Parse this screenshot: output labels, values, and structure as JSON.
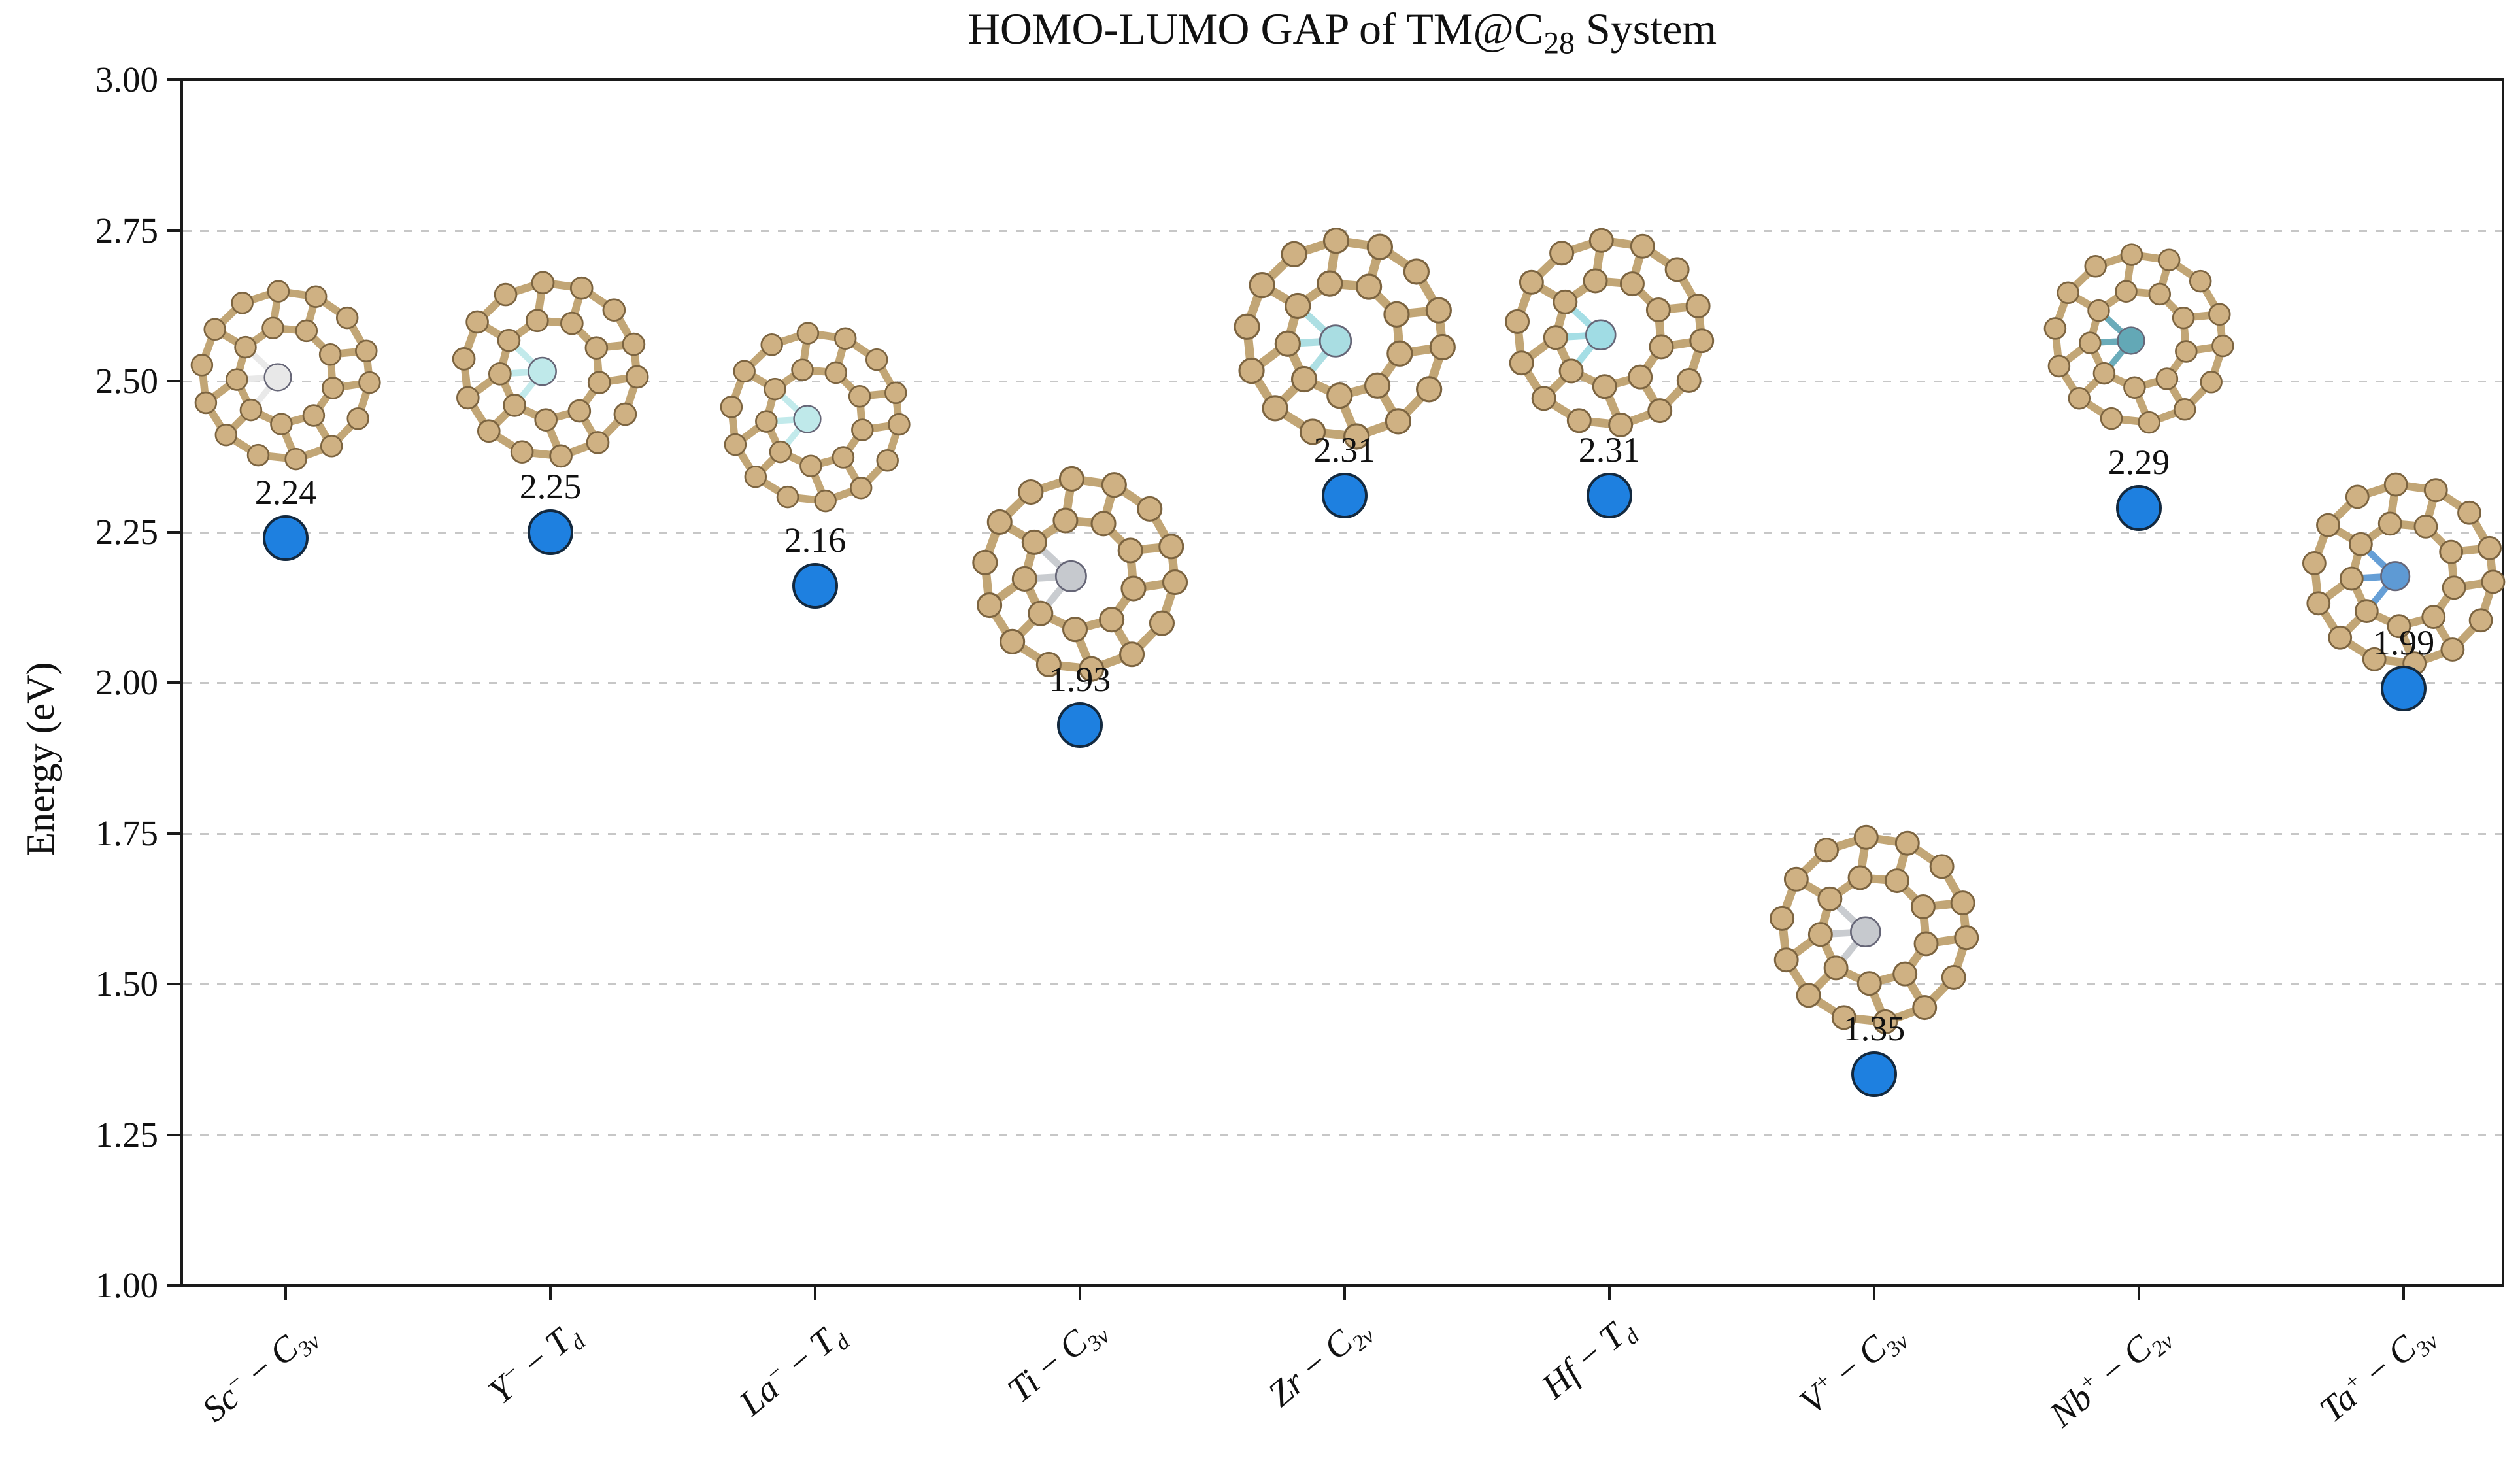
{
  "title": {
    "prefix": "HOMO-LUMO GAP of TM@C",
    "subscript": "28",
    "suffix": " System"
  },
  "axes": {
    "ylabel": "Energy (eV)",
    "y_ticks": [
      "3.00",
      "2.75",
      "2.50",
      "2.25",
      "2.00",
      "1.75",
      "1.50",
      "1.25",
      "1.00"
    ],
    "gridline_values": [
      2.75,
      2.5,
      2.25,
      2.0,
      1.75,
      1.5,
      1.25
    ]
  },
  "colors": {
    "background": "#ffffff",
    "spine": "#1a1a1a",
    "grid": "#c7c7c7",
    "marker_fill": "#1e80e0",
    "marker_edge": "#13293f",
    "cage_bond": "#c2a676",
    "cage_atom": "#cfb183",
    "cage_atom_edge": "#7c6440",
    "text": "#111111"
  },
  "chart_data": {
    "type": "scatter",
    "title": "HOMO-LUMO GAP of TM@C28 System",
    "xlabel": "",
    "ylabel": "Energy (eV)",
    "ylim": [
      1.0,
      3.0
    ],
    "y_tick_step": 0.25,
    "grid": "horizontal dashed lines at 1.25-2.75",
    "legend": "none",
    "categories": [
      "Sc⁻−C3v",
      "Y⁻−Td",
      "La⁻−Td",
      "Ti−C3v",
      "Zr−C2v",
      "Hf−Td",
      "V⁺−C3v",
      "Nb⁺−C2v",
      "Ta⁺−C3v"
    ],
    "values": [
      2.24,
      2.25,
      2.16,
      1.93,
      2.31,
      2.31,
      1.35,
      2.29,
      1.99
    ],
    "marker": {
      "shape": "circle",
      "fill": "#1e80e0",
      "edge": "#13293f"
    },
    "annotations": "each point labeled with its value; ball-and-stick TM@C28 cage structure drawn above each point",
    "points": [
      {
        "metal": "Sc",
        "charge": "−",
        "sym": "C",
        "sym_sub": "3v",
        "value": "2.24",
        "metal_color": "#e8e8e8",
        "structure_center_ev": 2.51,
        "structure_size": 300
      },
      {
        "metal": "Y",
        "charge": "−",
        "sym": "T",
        "sym_sub": "d",
        "value": "2.25",
        "metal_color": "#bfe9ea",
        "structure_center_ev": 2.52,
        "structure_size": 310
      },
      {
        "metal": "La",
        "charge": "−",
        "sym": "T",
        "sym_sub": "d",
        "value": "2.16",
        "metal_color": "#bfe9ea",
        "structure_center_ev": 2.44,
        "structure_size": 300
      },
      {
        "metal": "Ti",
        "charge": "",
        "sym": "C",
        "sym_sub": "3v",
        "value": "1.93",
        "metal_color": "#c6c9ce",
        "structure_center_ev": 2.18,
        "structure_size": 340
      },
      {
        "metal": "Zr",
        "charge": "",
        "sym": "C",
        "sym_sub": "2v",
        "value": "2.31",
        "metal_color": "#a9dde2",
        "structure_center_ev": 2.57,
        "structure_size": 350
      },
      {
        "metal": "Hf",
        "charge": "",
        "sym": "T",
        "sym_sub": "d",
        "value": "2.31",
        "metal_color": "#a0dce4",
        "structure_center_ev": 2.58,
        "structure_size": 330
      },
      {
        "metal": "V",
        "charge": "+",
        "sym": "C",
        "sym_sub": "3v",
        "value": "1.35",
        "metal_color": "#c6c9ce",
        "structure_center_ev": 1.59,
        "structure_size": 330
      },
      {
        "metal": "Nb",
        "charge": "+",
        "sym": "C",
        "sym_sub": "2v",
        "value": "2.29",
        "metal_color": "#63a8b6",
        "structure_center_ev": 2.57,
        "structure_size": 300
      },
      {
        "metal": "Ta",
        "charge": "+",
        "sym": "C",
        "sym_sub": "3v",
        "value": "1.99",
        "metal_color": "#5e9ad4",
        "structure_center_ev": 2.18,
        "structure_size": 320
      }
    ]
  }
}
